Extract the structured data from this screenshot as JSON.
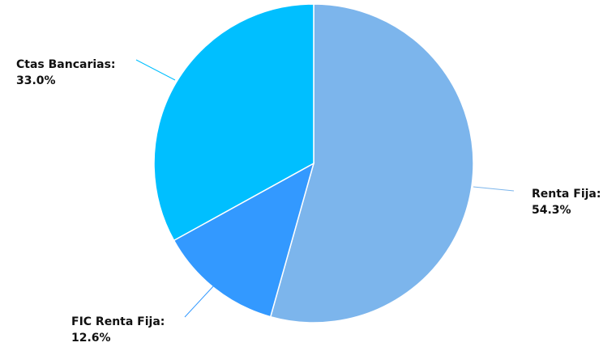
{
  "chart_data": {
    "type": "pie",
    "title": "",
    "slices": [
      {
        "label": "Renta Fija",
        "value": 54.3,
        "display": "54.3%",
        "color": "#7cb5ec"
      },
      {
        "label": "FIC Renta Fija",
        "value": 12.6,
        "display": "12.6%",
        "color": "#3399ff"
      },
      {
        "label": "Ctas Bancarias",
        "value": 33.0,
        "display": "33.0%",
        "color": "#00bfff"
      }
    ],
    "legend": "none",
    "data_labels": "outside-with-connectors"
  }
}
